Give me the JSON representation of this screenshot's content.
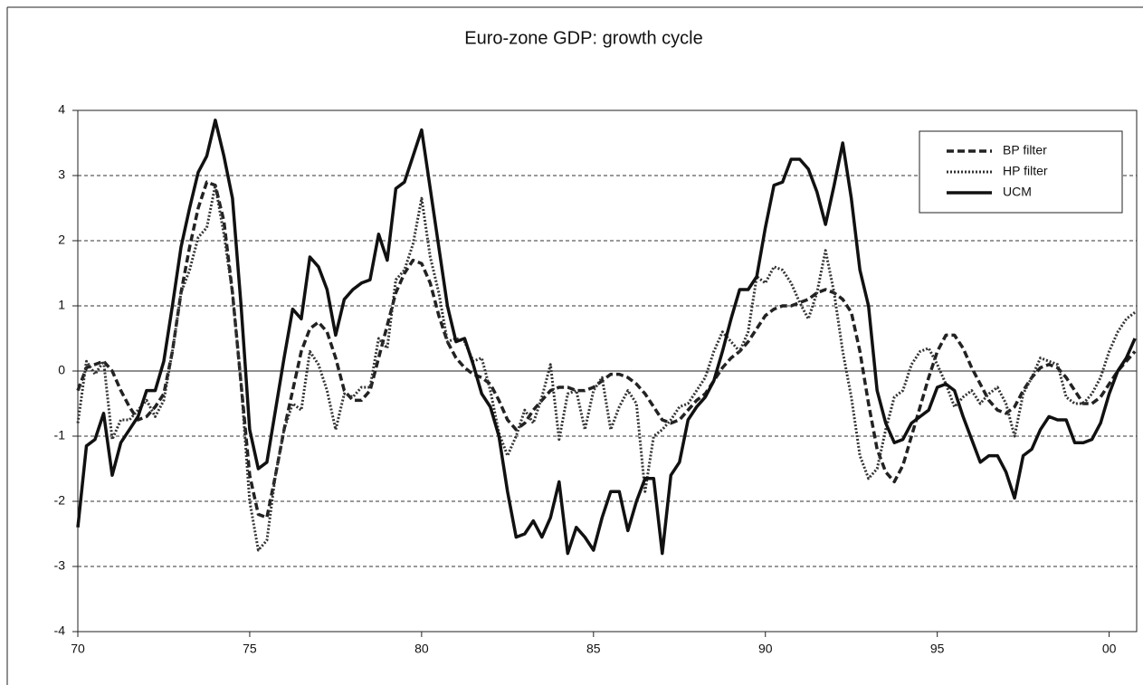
{
  "chart_data": {
    "type": "line",
    "title": "Euro-zone GDP: growth cycle",
    "x": [
      1970,
      1970.25,
      1970.5,
      1970.75,
      1971,
      1971.25,
      1971.5,
      1971.75,
      1972,
      1972.25,
      1972.5,
      1972.75,
      1973,
      1973.25,
      1973.5,
      1973.75,
      1974,
      1974.25,
      1974.5,
      1974.75,
      1975,
      1975.25,
      1975.5,
      1975.75,
      1976,
      1976.25,
      1976.5,
      1976.75,
      1977,
      1977.25,
      1977.5,
      1977.75,
      1978,
      1978.25,
      1978.5,
      1978.75,
      1979,
      1979.25,
      1979.5,
      1979.75,
      1980,
      1980.25,
      1980.5,
      1980.75,
      1981,
      1981.25,
      1981.5,
      1981.75,
      1982,
      1982.25,
      1982.5,
      1982.75,
      1983,
      1983.25,
      1983.5,
      1983.75,
      1984,
      1984.25,
      1984.5,
      1984.75,
      1985,
      1985.25,
      1985.5,
      1985.75,
      1986,
      1986.25,
      1986.5,
      1986.75,
      1987,
      1987.25,
      1987.5,
      1987.75,
      1988,
      1988.25,
      1988.5,
      1988.75,
      1989,
      1989.25,
      1989.5,
      1989.75,
      1990,
      1990.25,
      1990.5,
      1990.75,
      1991,
      1991.25,
      1991.5,
      1991.75,
      1992,
      1992.25,
      1992.5,
      1992.75,
      1993,
      1993.25,
      1993.5,
      1993.75,
      1994,
      1994.25,
      1994.5,
      1994.75,
      1995,
      1995.25,
      1995.5,
      1995.75,
      1996,
      1996.25,
      1996.5,
      1996.75,
      1997,
      1997.25,
      1997.5,
      1997.75,
      1998,
      1998.25,
      1998.5,
      1998.75,
      1999,
      1999.25,
      1999.5,
      1999.75,
      2000,
      2000.25,
      2000.5,
      2000.75
    ],
    "series": [
      {
        "name": "BP filter",
        "color": "#222222",
        "style": "dashed",
        "width": 3.5,
        "values": [
          -0.3,
          0.05,
          0.1,
          0.15,
          0.0,
          -0.3,
          -0.55,
          -0.75,
          -0.7,
          -0.55,
          -0.35,
          0.3,
          1.2,
          1.9,
          2.5,
          2.9,
          2.85,
          2.3,
          1.2,
          -0.2,
          -1.6,
          -2.2,
          -2.25,
          -1.6,
          -0.9,
          -0.3,
          0.3,
          0.65,
          0.75,
          0.6,
          0.2,
          -0.3,
          -0.45,
          -0.45,
          -0.3,
          0.2,
          0.7,
          1.2,
          1.5,
          1.7,
          1.65,
          1.35,
          0.85,
          0.45,
          0.2,
          0.05,
          -0.05,
          -0.1,
          -0.2,
          -0.45,
          -0.75,
          -0.9,
          -0.8,
          -0.6,
          -0.45,
          -0.3,
          -0.25,
          -0.25,
          -0.3,
          -0.3,
          -0.25,
          -0.15,
          -0.05,
          -0.05,
          -0.1,
          -0.2,
          -0.35,
          -0.55,
          -0.75,
          -0.8,
          -0.75,
          -0.6,
          -0.45,
          -0.35,
          -0.15,
          0.05,
          0.2,
          0.3,
          0.45,
          0.65,
          0.85,
          0.95,
          1.0,
          1.0,
          1.05,
          1.1,
          1.2,
          1.25,
          1.2,
          1.1,
          0.9,
          0.3,
          -0.5,
          -1.2,
          -1.55,
          -1.7,
          -1.45,
          -1.0,
          -0.55,
          -0.1,
          0.3,
          0.55,
          0.55,
          0.35,
          0.05,
          -0.2,
          -0.45,
          -0.6,
          -0.65,
          -0.55,
          -0.3,
          -0.1,
          0.05,
          0.1,
          0.05,
          -0.1,
          -0.3,
          -0.5,
          -0.5,
          -0.4,
          -0.2,
          0.0,
          0.15,
          0.3
        ]
      },
      {
        "name": "HP filter",
        "color": "#333333",
        "style": "dotted",
        "width": 3,
        "values": [
          -0.8,
          0.15,
          -0.05,
          0.15,
          -1.05,
          -0.75,
          -0.75,
          -0.6,
          -0.45,
          -0.7,
          -0.45,
          0.3,
          1.2,
          1.55,
          2.05,
          2.2,
          2.85,
          2.1,
          1.2,
          -0.2,
          -2.0,
          -2.75,
          -2.6,
          -1.6,
          -0.9,
          -0.5,
          -0.6,
          0.3,
          0.1,
          -0.3,
          -0.9,
          -0.35,
          -0.4,
          -0.25,
          -0.25,
          0.5,
          0.35,
          1.4,
          1.55,
          1.95,
          2.65,
          1.75,
          1.2,
          0.45,
          0.5,
          0.45,
          0.15,
          0.2,
          -0.3,
          -0.95,
          -1.3,
          -1.0,
          -0.6,
          -0.8,
          -0.4,
          0.1,
          -1.05,
          -0.35,
          -0.3,
          -0.9,
          -0.3,
          -0.1,
          -0.9,
          -0.55,
          -0.3,
          -0.5,
          -1.85,
          -1.0,
          -0.9,
          -0.75,
          -0.55,
          -0.5,
          -0.3,
          -0.1,
          0.3,
          0.6,
          0.45,
          0.3,
          0.6,
          1.45,
          1.35,
          1.6,
          1.55,
          1.35,
          1.05,
          0.8,
          1.2,
          1.85,
          1.2,
          0.3,
          -0.4,
          -1.3,
          -1.65,
          -1.5,
          -0.9,
          -0.4,
          -0.3,
          0.1,
          0.3,
          0.35,
          0.1,
          -0.2,
          -0.55,
          -0.4,
          -0.3,
          -0.5,
          -0.35,
          -0.25,
          -0.5,
          -1.0,
          -0.35,
          -0.1,
          0.2,
          0.15,
          0.1,
          -0.4,
          -0.5,
          -0.5,
          -0.35,
          -0.1,
          0.3,
          0.6,
          0.8,
          0.9
        ]
      },
      {
        "name": "UCM",
        "color": "#111111",
        "style": "solid",
        "width": 3.5,
        "values": [
          -2.4,
          -1.15,
          -1.05,
          -0.65,
          -1.6,
          -1.1,
          -0.9,
          -0.7,
          -0.3,
          -0.3,
          0.15,
          1.0,
          1.9,
          2.5,
          3.05,
          3.3,
          3.85,
          3.3,
          2.65,
          1.0,
          -0.9,
          -1.5,
          -1.4,
          -0.6,
          0.2,
          0.95,
          0.8,
          1.75,
          1.6,
          1.25,
          0.55,
          1.1,
          1.25,
          1.35,
          1.4,
          2.1,
          1.7,
          2.8,
          2.9,
          3.3,
          3.7,
          2.8,
          1.9,
          1.0,
          0.45,
          0.5,
          0.1,
          -0.35,
          -0.55,
          -1.0,
          -1.85,
          -2.55,
          -2.5,
          -2.3,
          -2.55,
          -2.25,
          -1.7,
          -2.8,
          -2.4,
          -2.55,
          -2.75,
          -2.25,
          -1.85,
          -1.85,
          -2.45,
          -2.0,
          -1.65,
          -1.65,
          -2.8,
          -1.6,
          -1.4,
          -0.75,
          -0.55,
          -0.4,
          -0.15,
          0.3,
          0.8,
          1.25,
          1.25,
          1.45,
          2.2,
          2.85,
          2.9,
          3.25,
          3.25,
          3.1,
          2.75,
          2.25,
          2.85,
          3.5,
          2.65,
          1.55,
          1.0,
          -0.3,
          -0.8,
          -1.1,
          -1.05,
          -0.8,
          -0.7,
          -0.6,
          -0.25,
          -0.2,
          -0.3,
          -0.7,
          -1.05,
          -1.4,
          -1.3,
          -1.3,
          -1.55,
          -1.95,
          -1.3,
          -1.2,
          -0.9,
          -0.7,
          -0.75,
          -0.75,
          -1.1,
          -1.1,
          -1.05,
          -0.8,
          -0.35,
          0.0,
          0.2,
          0.5
        ]
      }
    ],
    "xlim": [
      1970,
      2000.8
    ],
    "xticks": [
      {
        "value": 1970,
        "label": "70"
      },
      {
        "value": 1975,
        "label": "75"
      },
      {
        "value": 1980,
        "label": "80"
      },
      {
        "value": 1985,
        "label": "85"
      },
      {
        "value": 1990,
        "label": "90"
      },
      {
        "value": 1995,
        "label": "95"
      },
      {
        "value": 2000,
        "label": "00"
      }
    ],
    "ylim": [
      -4,
      4
    ],
    "yticks": [
      -4,
      -3,
      -2,
      -1,
      0,
      1,
      2,
      3,
      4
    ],
    "grid": true,
    "legend": "upper right"
  }
}
